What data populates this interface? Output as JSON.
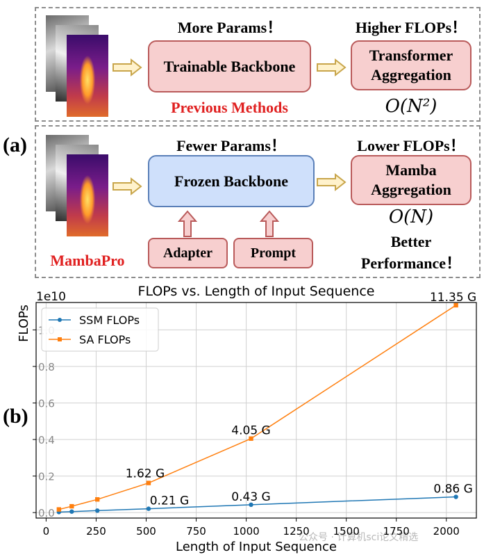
{
  "panel_a": {
    "label": "(a)",
    "top": {
      "params_note": "More Params！",
      "flops_note": "Higher FLOPs！",
      "backbone": "Trainable Backbone",
      "aggregation_line1": "Transformer",
      "aggregation_line2": "Aggregation",
      "complexity": "O(N²)",
      "method": "Previous Methods"
    },
    "bottom": {
      "params_note": "Fewer Params！",
      "flops_note": "Lower FLOPs！",
      "backbone": "Frozen Backbone",
      "aggregation_line1": "Mamba",
      "aggregation_line2": "Aggregation",
      "complexity": "O(N)",
      "adapter": "Adapter",
      "prompt": "Prompt",
      "method": "MambaPro",
      "perf_line1": "Better",
      "perf_line2": "Performance！"
    },
    "colors": {
      "pink": "#f7cfcf",
      "blue": "#cfe0fb",
      "red_text": "#e02020"
    }
  },
  "panel_b": {
    "label": "(b)",
    "watermark": "公众号 · 计算机sci论文精选"
  },
  "chart_data": {
    "type": "line",
    "title": "FLOPs vs. Length of Input Sequence",
    "xlabel": "Length of Input Sequence",
    "ylabel": "FLOPs",
    "scale_label": "1e10",
    "xlim": [
      -50,
      2150
    ],
    "ylim": [
      -0.03,
      1.15
    ],
    "xticks": [
      0,
      250,
      500,
      750,
      1000,
      1250,
      1500,
      1750,
      2000
    ],
    "yticks": [
      0.0,
      0.2,
      0.4,
      0.6,
      0.8,
      1.0
    ],
    "ytick_labels": [
      "0.0",
      "0.2",
      "0.4",
      "0.6",
      "0.8",
      "1.0"
    ],
    "legend_position": "top-left",
    "series": [
      {
        "name": "SSM FLOPs",
        "color": "#1f77b4",
        "marker": "circle",
        "x": [
          64,
          128,
          256,
          512,
          1024,
          2048
        ],
        "y": [
          0.0027,
          0.0054,
          0.0107,
          0.021,
          0.043,
          0.086
        ]
      },
      {
        "name": "SA FLOPs",
        "color": "#ff7f0e",
        "marker": "square",
        "x": [
          64,
          128,
          256,
          512,
          1024,
          2048
        ],
        "y": [
          0.0172,
          0.0345,
          0.072,
          0.162,
          0.405,
          1.135
        ]
      }
    ],
    "annotations": [
      {
        "text": "11.35 G",
        "x": 2048,
        "y": 1.135
      },
      {
        "text": "4.05 G",
        "x": 1024,
        "y": 0.405
      },
      {
        "text": "1.62 G",
        "x": 512,
        "y": 0.162
      },
      {
        "text": "0.21 G",
        "x": 512,
        "y": 0.021
      },
      {
        "text": "0.43 G",
        "x": 1024,
        "y": 0.043
      },
      {
        "text": "0.86 G",
        "x": 2048,
        "y": 0.086
      }
    ]
  }
}
